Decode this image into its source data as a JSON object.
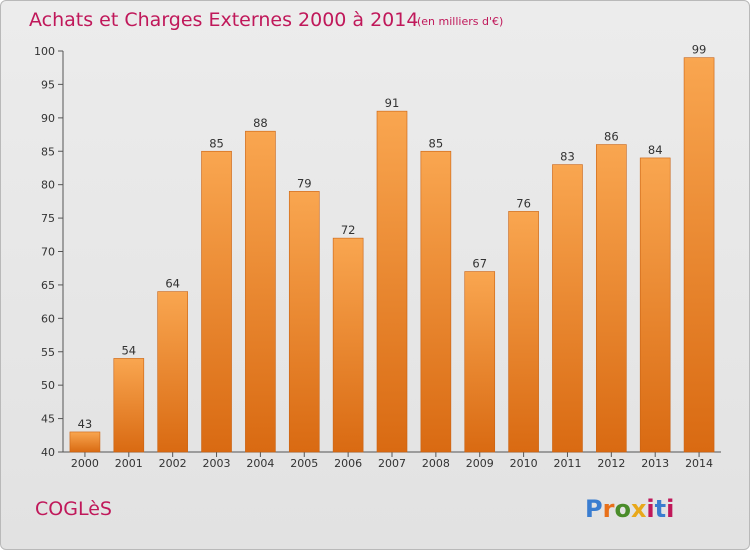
{
  "chart_data": {
    "type": "bar",
    "title": "Achats et Charges Externes 2000 à 2014",
    "subtitle": "(en milliers d'€)",
    "categories": [
      "2000",
      "2001",
      "2002",
      "2003",
      "2004",
      "2005",
      "2006",
      "2007",
      "2008",
      "2009",
      "2010",
      "2011",
      "2012",
      "2013",
      "2014"
    ],
    "values": [
      43,
      54,
      64,
      85,
      88,
      79,
      72,
      91,
      85,
      67,
      76,
      83,
      86,
      84,
      99
    ],
    "ylim": [
      40,
      100
    ],
    "yticks": [
      40,
      45,
      50,
      55,
      60,
      65,
      70,
      75,
      80,
      85,
      90,
      95,
      100
    ],
    "grid": false,
    "bar_color": "#f08c2c",
    "xlabel": "",
    "ylabel": ""
  },
  "town_name": "COGLèS",
  "logo": {
    "text": "Proxiti",
    "colors": [
      "#3a7dd0",
      "#e8701a",
      "#4a8c2a",
      "#e8a81a",
      "#c0185a",
      "#3a7dd0",
      "#c0185a"
    ]
  },
  "colors": {
    "title": "#c0185a",
    "axis": "#555555"
  }
}
